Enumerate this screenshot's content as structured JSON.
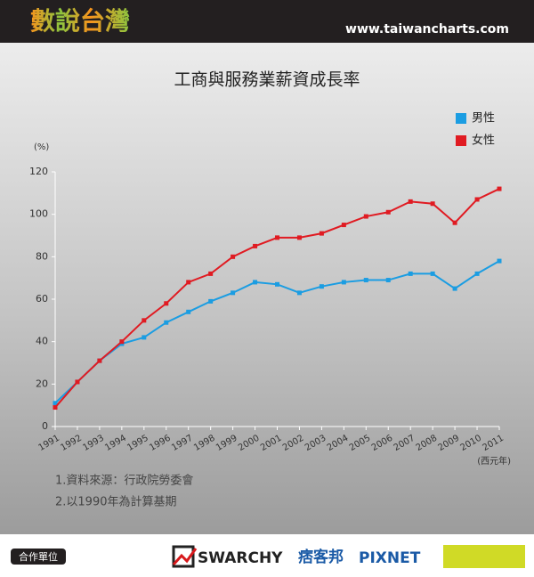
{
  "header": {
    "logo": "數說台灣",
    "url": "www.taiwancharts.com"
  },
  "chart_data": {
    "type": "line",
    "title": "工商與服務業薪資成長率",
    "y_label": "(%)",
    "x_label": "(西元年)",
    "categories": [
      "1991",
      "1992",
      "1993",
      "1994",
      "1995",
      "1996",
      "1997",
      "1998",
      "1999",
      "2000",
      "2001",
      "2002",
      "2003",
      "2004",
      "2005",
      "2006",
      "2007",
      "2008",
      "2009",
      "2010",
      "2011"
    ],
    "series": [
      {
        "name": "男性",
        "color": "#1b9de2",
        "values": [
          11,
          21,
          31,
          39,
          42,
          49,
          54,
          59,
          63,
          68,
          67,
          63,
          66,
          68,
          69,
          69,
          72,
          72,
          65,
          72,
          78
        ]
      },
      {
        "name": "女性",
        "color": "#e01b22",
        "values": [
          9,
          21,
          31,
          40,
          50,
          58,
          68,
          72,
          80,
          85,
          89,
          89,
          91,
          95,
          99,
          101,
          106,
          105,
          96,
          107,
          112
        ]
      }
    ],
    "ylim": [
      0,
      120
    ],
    "yticks": [
      0,
      20,
      40,
      60,
      80,
      100,
      120
    ],
    "legend": "upper right"
  },
  "notes": [
    "1.資料來源：行政院勞委會",
    "2.以1990年為計算基期"
  ],
  "footer": {
    "label": "合作單位",
    "partners": [
      "SWARCHY",
      "痞客邦",
      "PIXNET"
    ]
  }
}
